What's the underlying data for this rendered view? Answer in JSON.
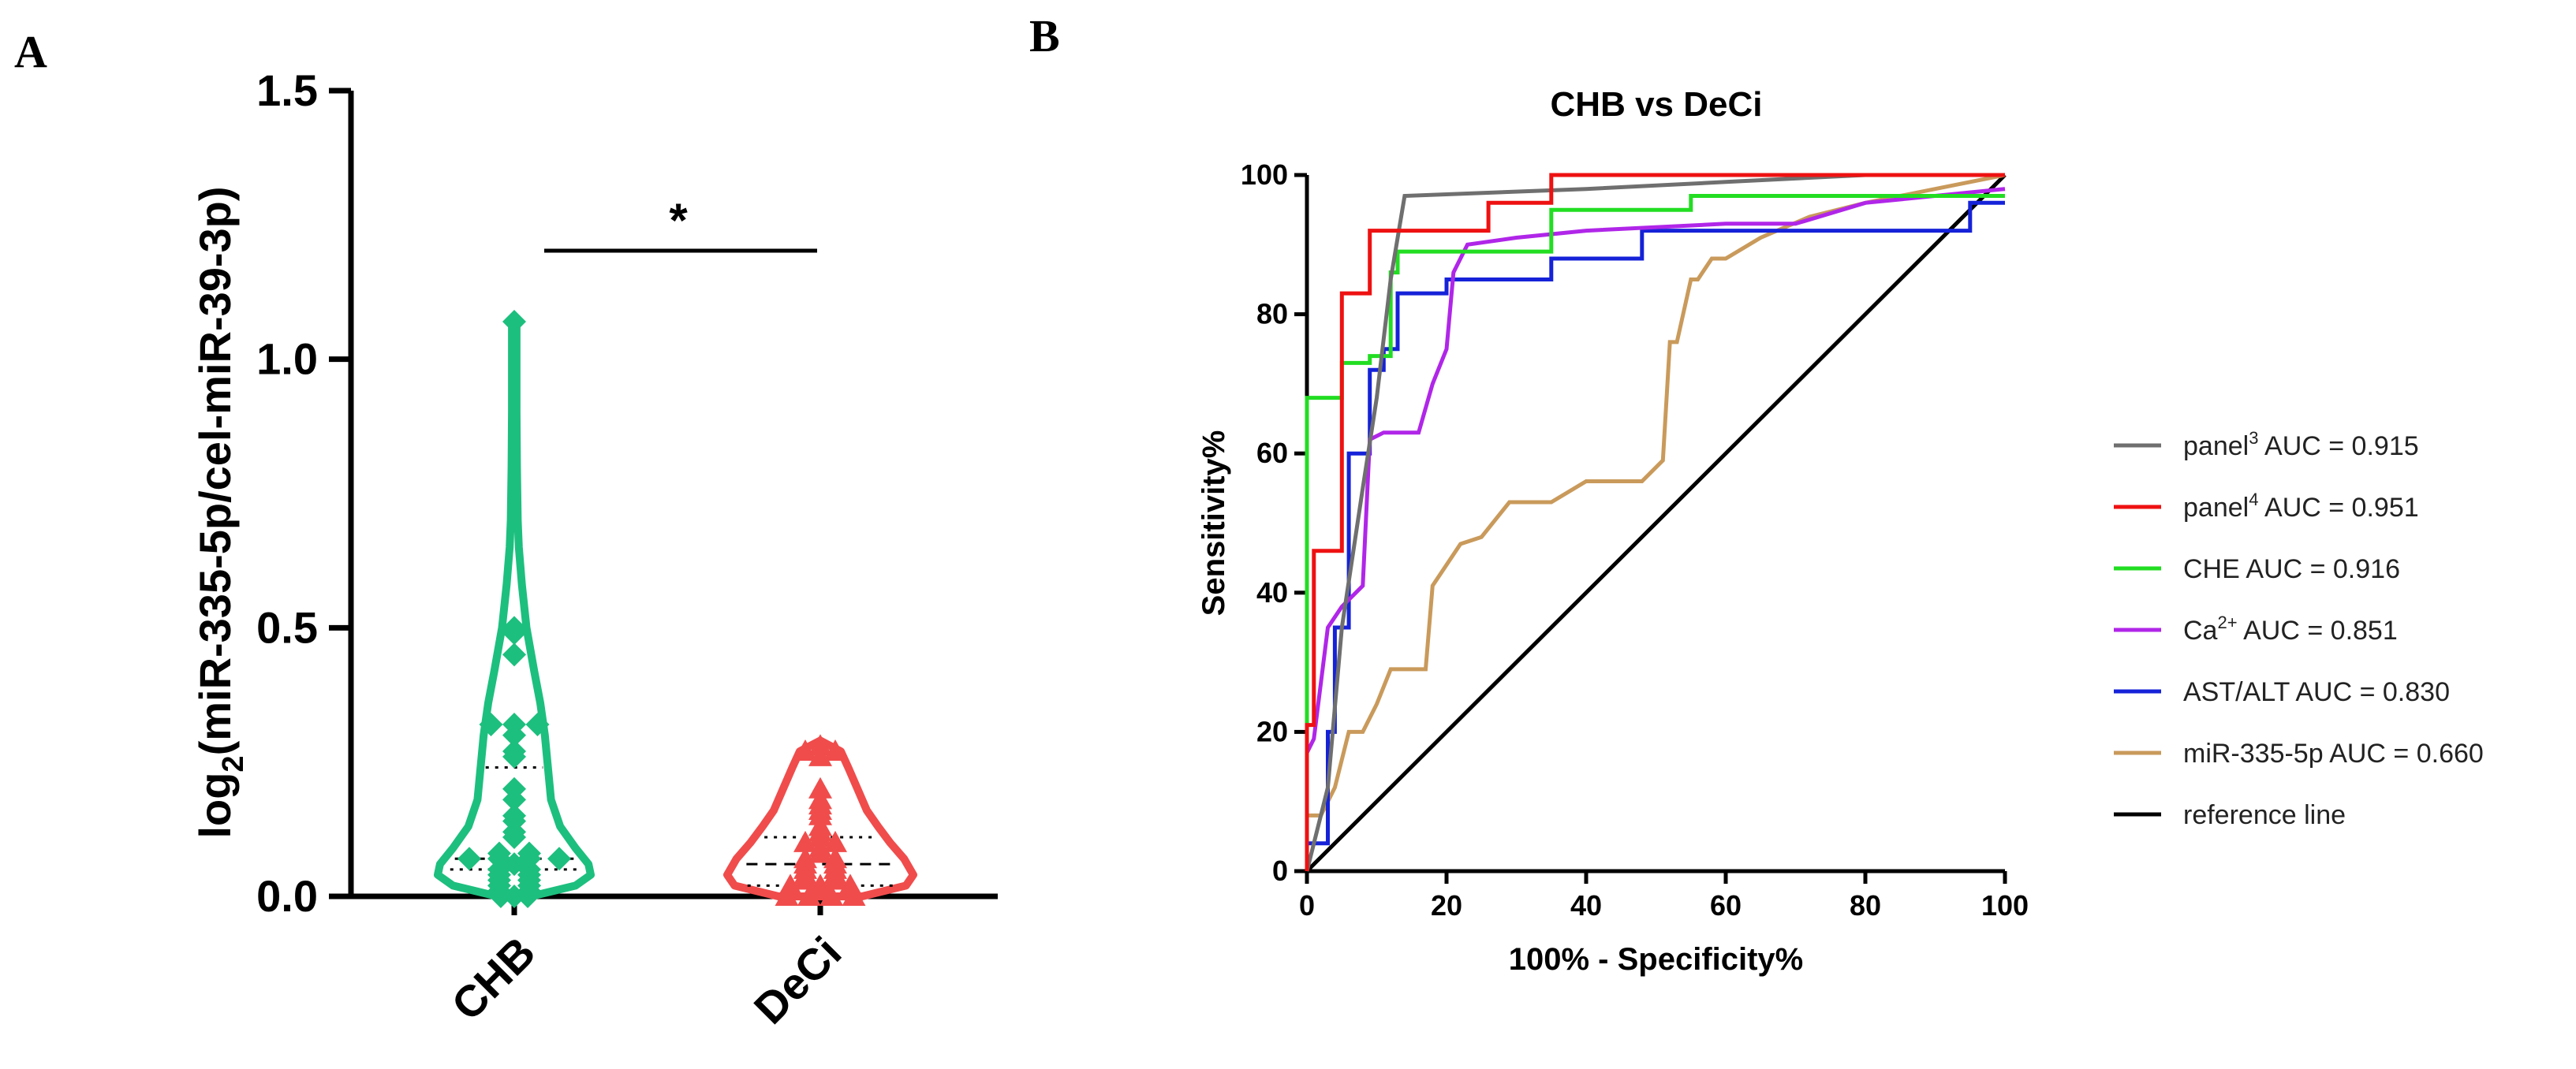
{
  "chart_data": [
    {
      "panel": "A",
      "type": "violin",
      "ylabel": "log2(miR-335-5p/cel-miR-39-3p)",
      "ylabel_base": "log",
      "ylabel_sub": "2",
      "ylabel_rest": "(miR-335-5p/cel-miR-39-3p)",
      "ylim": [
        0,
        1.5
      ],
      "yticks": [
        0.0,
        0.5,
        1.0,
        1.5
      ],
      "ytick_labels": [
        "0.0",
        "0.5",
        "1.0",
        "1.5"
      ],
      "significance": "*",
      "series": [
        {
          "name": "CHB",
          "color": "#1dbf7e",
          "marker": "diamond",
          "median": 0.07,
          "q1": 0.05,
          "q3": 0.24,
          "max": 1.08,
          "values": [
            1.07,
            0.5,
            0.49,
            0.45,
            0.32,
            0.32,
            0.32,
            0.3,
            0.27,
            0.26,
            0.2,
            0.18,
            0.15,
            0.14,
            0.12,
            0.11,
            0.08,
            0.08,
            0.07,
            0.07,
            0.07,
            0.07,
            0.06,
            0.05,
            0.05,
            0.04,
            0.04,
            0.03,
            0.03,
            0.02,
            0.02,
            0.01,
            0.01,
            0.0,
            0.0,
            0.0
          ],
          "density": [
            [
              0.0,
              0.22
            ],
            [
              0.02,
              0.8
            ],
            [
              0.04,
              1.0
            ],
            [
              0.06,
              0.97
            ],
            [
              0.09,
              0.8
            ],
            [
              0.13,
              0.6
            ],
            [
              0.18,
              0.48
            ],
            [
              0.24,
              0.44
            ],
            [
              0.3,
              0.4
            ],
            [
              0.36,
              0.34
            ],
            [
              0.42,
              0.26
            ],
            [
              0.5,
              0.16
            ],
            [
              0.58,
              0.1
            ],
            [
              0.65,
              0.06
            ],
            [
              0.7,
              0.045
            ],
            [
              0.8,
              0.035
            ],
            [
              0.9,
              0.03
            ],
            [
              1.0,
              0.03
            ],
            [
              1.06,
              0.03
            ],
            [
              1.08,
              0.0
            ]
          ]
        },
        {
          "name": "DeCi",
          "color": "#f04c4c",
          "marker": "triangle",
          "median": 0.06,
          "q1": 0.02,
          "q3": 0.11,
          "max": 0.29,
          "values": [
            0.28,
            0.27,
            0.27,
            0.26,
            0.2,
            0.18,
            0.17,
            0.16,
            0.15,
            0.13,
            0.12,
            0.11,
            0.1,
            0.1,
            0.09,
            0.08,
            0.07,
            0.07,
            0.06,
            0.06,
            0.05,
            0.05,
            0.04,
            0.04,
            0.03,
            0.03,
            0.02,
            0.02,
            0.02,
            0.01,
            0.01,
            0.01,
            0.0,
            0.0,
            0.0,
            0.0
          ],
          "density": [
            [
              0.0,
              0.45
            ],
            [
              0.02,
              0.92
            ],
            [
              0.04,
              1.0
            ],
            [
              0.07,
              0.9
            ],
            [
              0.1,
              0.75
            ],
            [
              0.13,
              0.62
            ],
            [
              0.16,
              0.5
            ],
            [
              0.2,
              0.4
            ],
            [
              0.24,
              0.3
            ],
            [
              0.27,
              0.22
            ],
            [
              0.29,
              0.0
            ]
          ]
        }
      ]
    },
    {
      "panel": "B",
      "type": "line",
      "title": "CHB vs DeCi",
      "xlabel": "100% - Specificity%",
      "ylabel": "Sensitivity%",
      "xlim": [
        0,
        100
      ],
      "ylim": [
        0,
        100
      ],
      "xticks": [
        0,
        20,
        40,
        60,
        80,
        100
      ],
      "yticks": [
        0,
        20,
        40,
        60,
        80,
        100
      ],
      "legend_position": "right",
      "series": [
        {
          "name": "panel3 AUC = 0.915",
          "label_base": "panel",
          "label_sup": "3",
          "label_rest": " AUC = 0.915",
          "color": "#6f6f6f",
          "x": [
            0,
            3,
            5,
            8,
            10,
            12,
            14,
            40,
            60,
            80,
            100
          ],
          "y": [
            0,
            12,
            35,
            55,
            68,
            85,
            97,
            98,
            99,
            100,
            100
          ]
        },
        {
          "name": "panel4 AUC = 0.951",
          "label_base": "panel",
          "label_sup": "4",
          "label_rest": " AUC = 0.951",
          "color": "#ee1111",
          "x": [
            0,
            0,
            1,
            1,
            3,
            5,
            5,
            9,
            9,
            26,
            26,
            35,
            35,
            100
          ],
          "y": [
            0,
            21,
            21,
            46,
            46,
            46,
            83,
            83,
            92,
            92,
            96,
            96,
            100,
            100
          ]
        },
        {
          "name": "CHE AUC = 0.916",
          "label_base": "CHE AUC = 0.916",
          "label_sup": "",
          "label_rest": "",
          "color": "#22dd22",
          "x": [
            0,
            0,
            5,
            5,
            9,
            9,
            12,
            12,
            13,
            13,
            35,
            35,
            55,
            55,
            100
          ],
          "y": [
            0,
            68,
            68,
            73,
            73,
            74,
            74,
            86,
            86,
            89,
            89,
            95,
            95,
            97,
            97
          ]
        },
        {
          "name": "Ca2+ AUC = 0.851",
          "label_base": "Ca",
          "label_sup": "2+",
          "label_rest": " AUC = 0.851",
          "color": "#b026e8",
          "x": [
            0,
            1,
            3,
            5,
            8,
            9,
            11,
            16,
            18,
            20,
            21,
            23,
            30,
            40,
            60,
            70,
            80,
            100
          ],
          "y": [
            17,
            19,
            35,
            38,
            41,
            62,
            63,
            63,
            70,
            75,
            86,
            90,
            91,
            92,
            93,
            93,
            96,
            98
          ]
        },
        {
          "name": "AST/ALT AUC = 0.830",
          "label_base": "AST/ALT AUC = 0.830",
          "label_sup": "",
          "label_rest": "",
          "color": "#1522d8",
          "x": [
            0,
            0,
            3,
            3,
            4,
            4,
            6,
            6,
            9,
            9,
            11,
            11,
            13,
            13,
            20,
            20,
            35,
            35,
            48,
            48,
            95,
            95,
            100
          ],
          "y": [
            0,
            4,
            4,
            20,
            20,
            35,
            35,
            60,
            60,
            72,
            72,
            75,
            75,
            83,
            83,
            85,
            85,
            88,
            88,
            92,
            92,
            96,
            96
          ]
        },
        {
          "name": "miR-335-5p AUC = 0.660",
          "label_base": "miR-335-5p AUC = 0.660",
          "label_sup": "",
          "label_rest": "",
          "color": "#c99a5b",
          "x": [
            0,
            0,
            2,
            4,
            6,
            8,
            10,
            12,
            14,
            17,
            18,
            20,
            22,
            25,
            29,
            35,
            40,
            48,
            51,
            52,
            53,
            55,
            56,
            58,
            60,
            65,
            72,
            80,
            85,
            100
          ],
          "y": [
            0,
            8,
            8,
            12,
            20,
            20,
            24,
            29,
            29,
            29,
            41,
            44,
            47,
            48,
            53,
            53,
            56,
            56,
            59,
            76,
            76,
            85,
            85,
            88,
            88,
            91,
            94,
            96,
            97,
            100
          ]
        },
        {
          "name": "reference line",
          "label_base": "reference line",
          "label_sup": "",
          "label_rest": "",
          "color": "#000000",
          "x": [
            0,
            100
          ],
          "y": [
            0,
            100
          ]
        }
      ]
    }
  ]
}
